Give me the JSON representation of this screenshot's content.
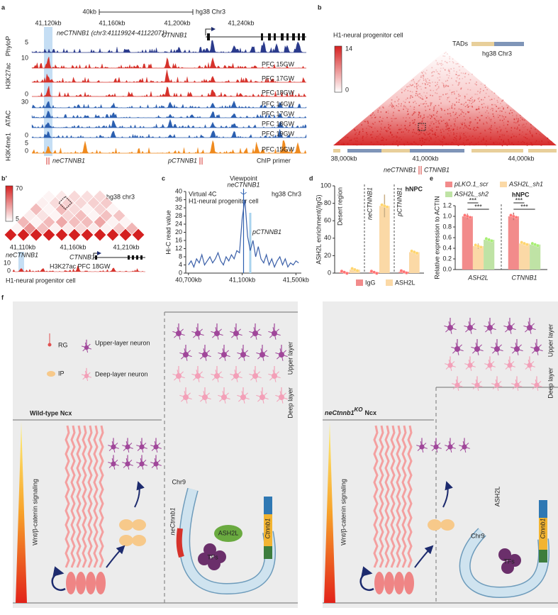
{
  "panel_labels": [
    "a",
    "b",
    "b’",
    "c",
    "d",
    "e",
    "f"
  ],
  "a": {
    "scale_bar": "40kb",
    "assembly": "hg38 Chr3",
    "coordinates": [
      "41,120kb",
      "41,160kb",
      "41,200kb",
      "41,240kb"
    ],
    "enhancer": "neCTNNB1 (chr3:41119924-41122071)",
    "gene": "CTNNB1",
    "groups": [
      {
        "name": "PhyloP",
        "color": "#2a3a8c",
        "labels": [
          "5"
        ]
      },
      {
        "name": "H3K27ac",
        "color": "#d6322b",
        "labels": [
          "10",
          "0"
        ],
        "tracks": [
          "PFC 15GW",
          "PFC 17GW",
          "PFC 18GW"
        ]
      },
      {
        "name": "ATAC",
        "color": "#2b5fb0",
        "labels": [
          "30",
          "0"
        ],
        "tracks": [
          "PFC 14GW",
          "PFC 17GW",
          "PFC 18GW",
          "PFC 19GW"
        ]
      },
      {
        "name": "H3K4me1",
        "color": "#ef8a1e",
        "labels": [
          "5",
          "0"
        ],
        "tracks": [
          "PFC 15GW"
        ]
      }
    ],
    "primers": [
      "neCTNNB1",
      "pCTNNB1"
    ],
    "primer_label": "ChIP primer"
  },
  "b": {
    "cell": "H1-neural progenitor cell",
    "colorbar": [
      14,
      0
    ],
    "tads": "TADs",
    "assembly": "hg38 Chr3",
    "coordinates": [
      "38,000kb",
      "41,000kb",
      "44,000kb"
    ],
    "elements": [
      "neCTNNB1",
      "CTNNB1"
    ]
  },
  "b_prime": {
    "colorbar": [
      70,
      5
    ],
    "assembly": "hg38 chr3",
    "coordinates": [
      "41,110kb",
      "41,160kb",
      "41,210kb"
    ],
    "enhancer": "neCTNNB1",
    "gene": "CTNNB1",
    "track_scale": [
      10,
      0
    ],
    "track": "H3K27ac PFC 18GW",
    "cell": "H1-neural progenitor cell"
  },
  "chart_data": [
    {
      "type": "line",
      "title": "Virtual 4C",
      "subtitle": "H1-neural progenitor cell",
      "assembly": "hg38 Chr3",
      "ylabel": "Hi-C read value",
      "viewpoint": "Viewpoint",
      "markers": [
        {
          "label": "neCTNNB1",
          "x": 41110
        },
        {
          "label": "pCTNNB1",
          "x": 41160
        }
      ],
      "x": [
        40700,
        40720,
        40740,
        40760,
        40780,
        40800,
        40820,
        40840,
        40860,
        40880,
        40900,
        40920,
        40940,
        40960,
        40980,
        41000,
        41020,
        41040,
        41060,
        41080,
        41100,
        41120,
        41140,
        41160,
        41180,
        41200,
        41220,
        41240,
        41260,
        41280,
        41300,
        41320,
        41340,
        41360,
        41380,
        41400,
        41420,
        41440,
        41460,
        41480,
        41500,
        41520
      ],
      "values": [
        4,
        6,
        3,
        7,
        5,
        9,
        4,
        6,
        8,
        5,
        7,
        10,
        6,
        4,
        8,
        6,
        9,
        7,
        11,
        10,
        27,
        36,
        18,
        11,
        16,
        8,
        13,
        7,
        5,
        9,
        4,
        7,
        3,
        6,
        8,
        4,
        7,
        3,
        5,
        4,
        6,
        5
      ],
      "color": "#3a5fa8",
      "xlim": [
        40680,
        41540
      ],
      "xticks": [
        {
          "value": 40700,
          "label": "40,700kb"
        },
        {
          "value": 41100,
          "label": "41,100kb"
        },
        {
          "value": 41500,
          "label": "41,500kb"
        }
      ],
      "ylim": [
        0,
        40
      ],
      "yticks": [
        0,
        4,
        8,
        12,
        16,
        20,
        24,
        28,
        32,
        36,
        40
      ]
    },
    {
      "type": "bar",
      "ylabel": "ASH2L enrichment(/IgG)",
      "cell": "hNPC",
      "categories": [
        "Desert region",
        "neCTNNB1",
        "pCTNNB1"
      ],
      "series": [
        {
          "name": "IgG",
          "color": "#f28b8b",
          "values": [
            1,
            1,
            1.5
          ],
          "errors": [
            0.3,
            0.3,
            0.4
          ]
        },
        {
          "name": "ASH2L",
          "color": "#fbd9a6",
          "values": [
            4,
            77,
            24
          ],
          "errors": [
            1,
            13,
            2
          ]
        }
      ],
      "ylim": [
        0,
        100
      ],
      "yticks": [
        0,
        20,
        40,
        60,
        80,
        100
      ]
    },
    {
      "type": "bar",
      "ylabel": "Relative expression to ACTIN",
      "cell": "hNPC",
      "categories": [
        "ASH2L",
        "CTNNB1"
      ],
      "series": [
        {
          "name": "pLKO.1_scr",
          "color": "#f28b8b",
          "values": [
            1,
            1
          ],
          "errors": [
            0.05,
            0.07
          ]
        },
        {
          "name": "ASH2L_sh1",
          "color": "#fbd9a6",
          "values": [
            0.44,
            0.49
          ],
          "errors": [
            0.05,
            0.01
          ]
        },
        {
          "name": "ASH2L_sh2",
          "color": "#bfe3a5",
          "values": [
            0.56,
            0.47
          ],
          "errors": [
            0.03,
            0.02
          ]
        }
      ],
      "ylim": [
        0,
        1.2
      ],
      "yticks": [
        {
          "value": 0,
          "label": "0.0"
        },
        0.2,
        0.4,
        0.6,
        0.8,
        {
          "value": 1,
          "label": "1.0"
        },
        1.2
      ],
      "significance": [
        "***",
        "***",
        "***",
        "***"
      ]
    }
  ],
  "f": {
    "left": {
      "legend": [
        "RG",
        "Upper-layer neuron",
        "IP",
        "Deep-layer neuron"
      ],
      "title": "Wild-type Ncx",
      "layers": [
        "Upper layer",
        "Deep layer"
      ],
      "chromosome": "Chr9",
      "enhancer": "neCtnnb1",
      "factors": [
        "ASH2L",
        "TFs"
      ],
      "gene": "Ctnnb1",
      "signal": "Wnt/β-catenin signaling"
    },
    "right": {
      "title": {
        "gene": "neCtnnb1",
        "superscript": "KO",
        "tissue": "Ncx"
      },
      "layers": [
        "Upper layer",
        "Deep layer"
      ],
      "chromosome": "Chr9",
      "factors": [
        "ASH2L",
        "TFs"
      ],
      "gene": "Ctnnb1",
      "signal": "Wnt/β-catenin signaling"
    }
  }
}
